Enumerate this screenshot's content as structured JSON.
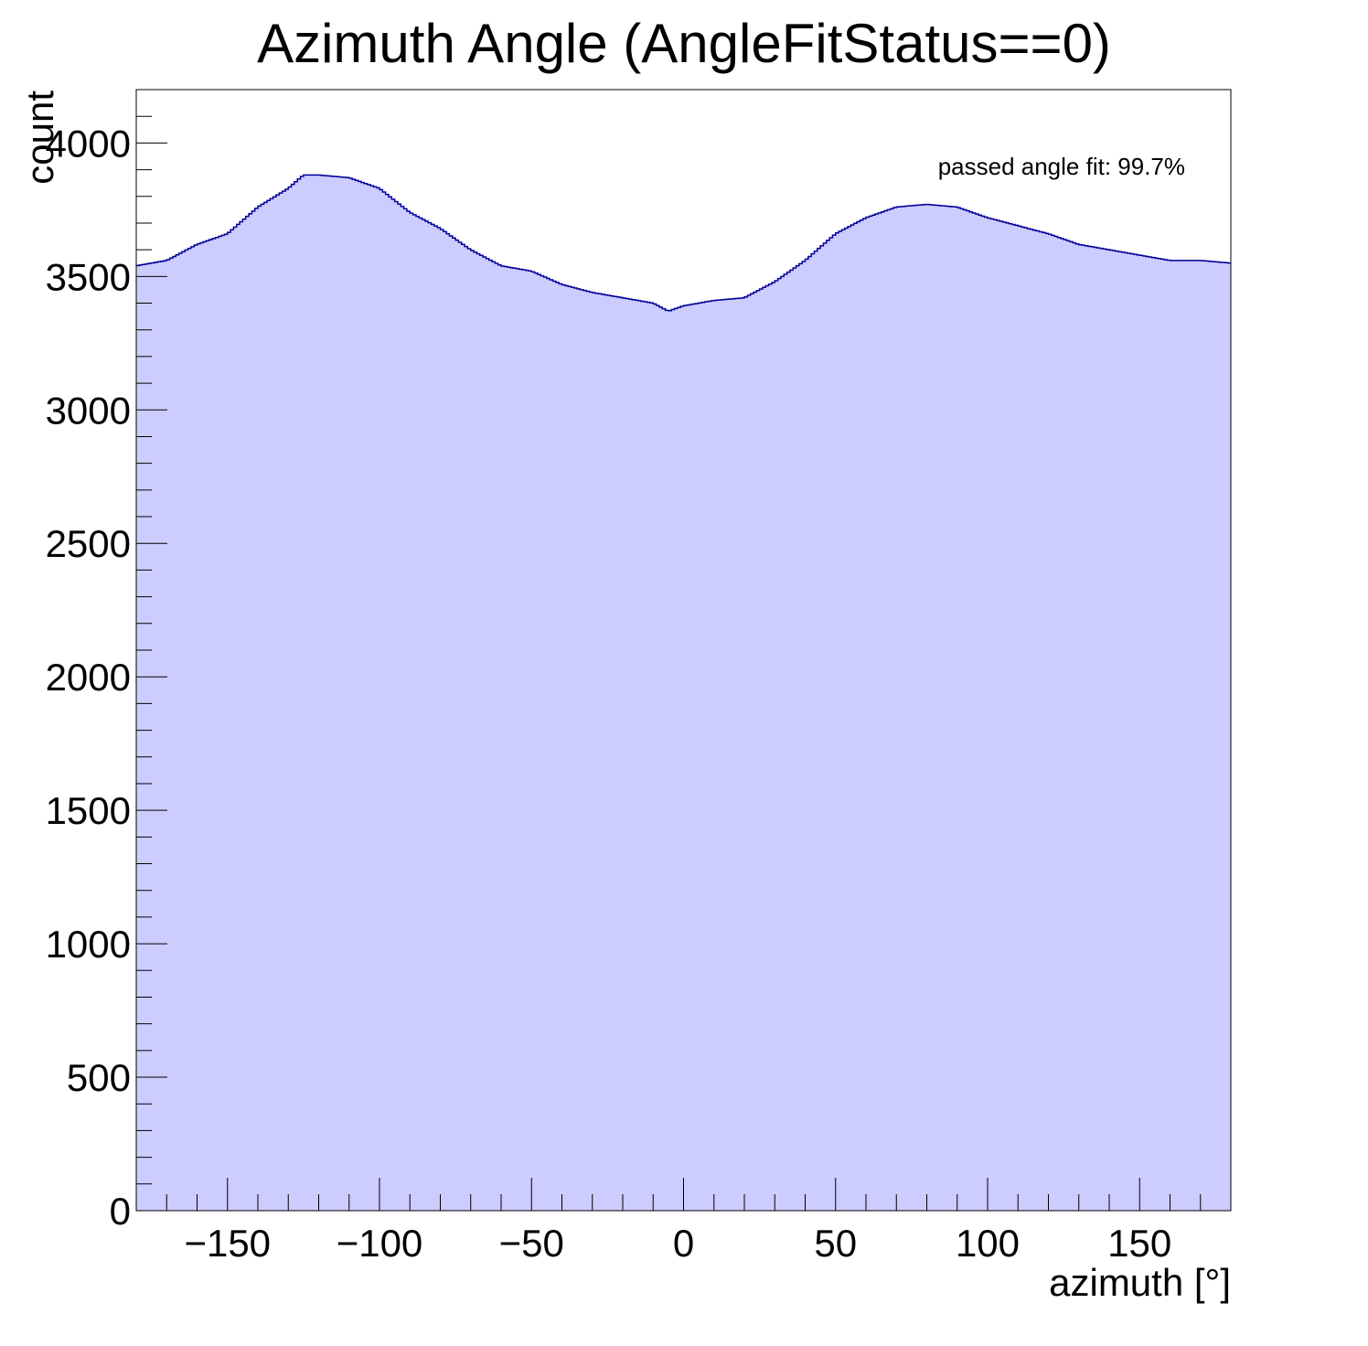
{
  "chart_data": {
    "type": "bar",
    "title": "Azimuth Angle (AngleFitStatus==0)",
    "xlabel": "azimuth [°]",
    "ylabel": "count",
    "xlim": [
      -180,
      180
    ],
    "ylim": [
      0,
      4200
    ],
    "x_ticks": [
      -150,
      -100,
      -50,
      0,
      50,
      100,
      150
    ],
    "x_tick_labels": [
      "−150",
      "−100",
      "−50",
      "0",
      "50",
      "100",
      "150"
    ],
    "y_ticks": [
      0,
      500,
      1000,
      1500,
      2000,
      2500,
      3000,
      3500,
      4000
    ],
    "y_tick_labels": [
      "0",
      "500",
      "1000",
      "1500",
      "2000",
      "2500",
      "3000",
      "3500",
      "4000"
    ],
    "annotation": "passed angle fit: 99.7%",
    "fill_color": "#ccccff",
    "line_color": "#000099",
    "bin_width": 1,
    "x": [
      -180,
      -170,
      -160,
      -150,
      -140,
      -130,
      -125,
      -120,
      -110,
      -100,
      -90,
      -80,
      -70,
      -60,
      -50,
      -40,
      -30,
      -20,
      -10,
      -5,
      0,
      10,
      20,
      30,
      40,
      50,
      60,
      70,
      80,
      90,
      100,
      110,
      120,
      130,
      140,
      150,
      160,
      170,
      180
    ],
    "values": [
      3540,
      3560,
      3620,
      3660,
      3760,
      3830,
      3880,
      3880,
      3870,
      3830,
      3740,
      3680,
      3600,
      3540,
      3520,
      3470,
      3440,
      3420,
      3400,
      3370,
      3390,
      3410,
      3420,
      3480,
      3560,
      3660,
      3720,
      3760,
      3770,
      3760,
      3720,
      3690,
      3660,
      3620,
      3600,
      3580,
      3560,
      3560,
      3550
    ]
  }
}
